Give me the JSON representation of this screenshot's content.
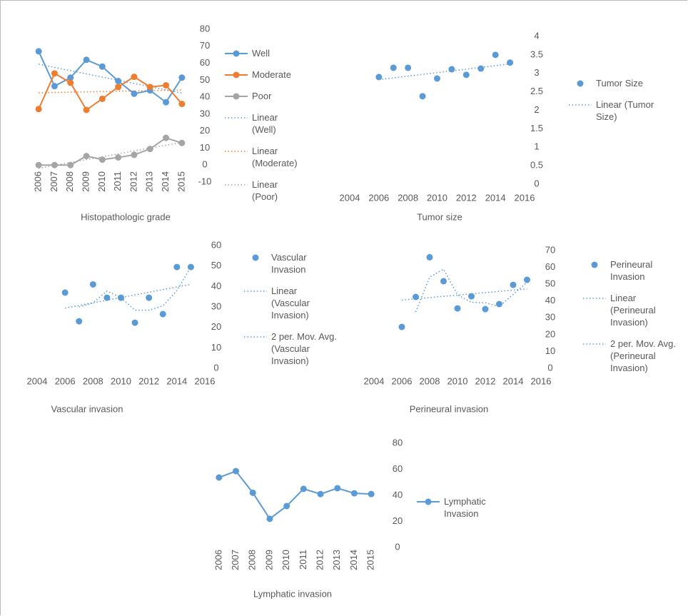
{
  "chart_data": [
    {
      "type": "line",
      "title": "Histopathologic grade",
      "categories": [
        "2006",
        "2007",
        "2008",
        "2009",
        "2010",
        "2011",
        "2012",
        "2013",
        "2014",
        "2015"
      ],
      "ylim": [
        -10,
        80
      ],
      "yticks": [
        -10,
        0,
        10,
        20,
        30,
        40,
        50,
        60,
        70,
        80
      ],
      "series": [
        {
          "name": "Well",
          "color": "#5b9bd5",
          "values": [
            67,
            46.5,
            51.5,
            62,
            58,
            49.5,
            42,
            44,
            37,
            51.5
          ],
          "trendlines": [
            {
              "type": "linear",
              "name": "Linear (Well)"
            }
          ]
        },
        {
          "name": "Moderate",
          "color": "#ed7d31",
          "values": [
            33,
            54,
            48.5,
            32.5,
            39,
            46,
            52,
            46,
            47,
            36
          ],
          "trendlines": [
            {
              "type": "linear",
              "name": "Linear (Moderate)"
            }
          ]
        },
        {
          "name": "Poor",
          "color": "#a5a5a5",
          "values": [
            0,
            0,
            0,
            5.3,
            3.2,
            4.5,
            6,
            9.5,
            16,
            13
          ],
          "trendlines": [
            {
              "type": "linear",
              "name": "Linear (Poor)"
            }
          ]
        }
      ]
    },
    {
      "type": "scatter",
      "title": "Tumor size",
      "x": [
        2006,
        2007,
        2008,
        2009,
        2010,
        2011,
        2012,
        2013,
        2014,
        2015
      ],
      "xlim": [
        2004,
        2016
      ],
      "xticks": [
        2004,
        2006,
        2008,
        2010,
        2012,
        2014,
        2016
      ],
      "ylim": [
        0,
        4
      ],
      "yticks": [
        0,
        0.5,
        1,
        1.5,
        2,
        2.5,
        3,
        3.5,
        4
      ],
      "series": [
        {
          "name": "Tumor Size",
          "color": "#5b9bd5",
          "values": [
            2.9,
            3.15,
            3.15,
            2.38,
            2.86,
            3.11,
            2.96,
            3.13,
            3.5,
            3.29
          ],
          "trendlines": [
            {
              "type": "linear",
              "name": "Linear (Tumor Size)"
            }
          ]
        }
      ]
    },
    {
      "type": "scatter",
      "title": "Vascular invasion",
      "x": [
        2006,
        2007,
        2008,
        2009,
        2010,
        2011,
        2012,
        2013,
        2014,
        2015
      ],
      "xlim": [
        2004,
        2016
      ],
      "xticks": [
        2004,
        2006,
        2008,
        2010,
        2012,
        2014,
        2016
      ],
      "ylim": [
        0,
        60
      ],
      "yticks": [
        0,
        10,
        20,
        30,
        40,
        50,
        60
      ],
      "series": [
        {
          "name": "Vascular Invasion",
          "color": "#5b9bd5",
          "values": [
            37,
            23,
            41,
            34.5,
            34.5,
            22.3,
            34.5,
            26.5,
            49.5,
            49.5
          ],
          "trendlines": [
            {
              "type": "linear",
              "name": "Linear (Vascular Invasion)"
            },
            {
              "type": "moving-average",
              "period": 2,
              "name": "2 per. Mov. Avg. (Vascular Invasion)"
            }
          ]
        }
      ]
    },
    {
      "type": "scatter",
      "title": "Perineural invasion",
      "x": [
        2006,
        2007,
        2008,
        2009,
        2010,
        2011,
        2012,
        2013,
        2014,
        2015
      ],
      "xlim": [
        2004,
        2016
      ],
      "xticks": [
        2004,
        2006,
        2008,
        2010,
        2012,
        2014,
        2016
      ],
      "ylim": [
        0,
        70
      ],
      "yticks": [
        0,
        10,
        20,
        30,
        40,
        50,
        60,
        70
      ],
      "series": [
        {
          "name": "Perineural Invasion",
          "color": "#5b9bd5",
          "values": [
            24.6,
            42.4,
            66,
            51.8,
            35.6,
            42.8,
            35.2,
            38.2,
            49.6,
            52.6
          ],
          "trendlines": [
            {
              "type": "linear",
              "name": "Linear (Perineural Invasion)"
            },
            {
              "type": "moving-average",
              "period": 2,
              "name": "2 per. Mov. Avg. (Perineural Invasion)"
            }
          ]
        }
      ]
    },
    {
      "type": "line",
      "title": "Lymphatic invasion",
      "categories": [
        "2006",
        "2007",
        "2008",
        "2009",
        "2010",
        "2011",
        "2012",
        "2013",
        "2014",
        "2015"
      ],
      "ylim": [
        0,
        80
      ],
      "yticks": [
        0,
        20,
        40,
        60,
        80
      ],
      "series": [
        {
          "name": "Lymphatic Invasion",
          "color": "#5b9bd5",
          "values": [
            53.7,
            58.6,
            42,
            22,
            31.8,
            45,
            41,
            45.5,
            41.6,
            41
          ]
        }
      ]
    }
  ]
}
